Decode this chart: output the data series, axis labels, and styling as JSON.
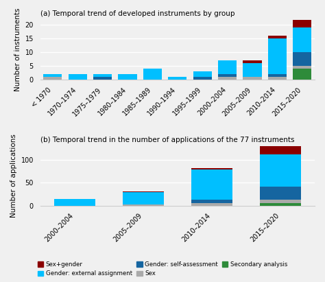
{
  "title_a": "(a) Temporal trend of developed instruments by group",
  "title_b": "(b) Temporal trend in the number of applications of the 77 instruments",
  "ylabel_a": "Number of instruments",
  "ylabel_b": "Number of applications",
  "colors": {
    "sex_gender": "#8B0000",
    "ext_assignment": "#00BFFF",
    "self_assessment": "#1565A0",
    "sex": "#AAAAAA",
    "secondary": "#2E8B3A"
  },
  "legend_labels": [
    "Sex+gender",
    "Gender: external assignment",
    "Gender: self-assessment",
    "Sex",
    "Secondary analysis"
  ],
  "categories_a": [
    "< 1970",
    "1970–1974",
    "1975–1979",
    "1980–1984",
    "1985–1989",
    "1990–1994",
    "1995–1999",
    "2000–2004",
    "2005–2009",
    "2010–2014",
    "2015–2020"
  ],
  "data_a": {
    "sex_gender": [
      0,
      0,
      0,
      0,
      0,
      0,
      0,
      0,
      1,
      1,
      3
    ],
    "ext_assignment": [
      1,
      2,
      1,
      2,
      4,
      1,
      2,
      5,
      5,
      13,
      9
    ],
    "self_assessment": [
      0,
      0,
      1,
      0,
      0,
      0,
      1,
      1,
      0,
      1,
      5
    ],
    "sex": [
      1,
      0,
      0,
      0,
      0,
      0,
      0,
      1,
      1,
      1,
      1
    ],
    "secondary": [
      0,
      0,
      0,
      0,
      0,
      0,
      0,
      0,
      0,
      0,
      4
    ]
  },
  "categories_b": [
    "2000–2004",
    "2005–2009",
    "2010–2014",
    "2015–2020"
  ],
  "data_b": {
    "sex_gender": [
      0,
      1,
      3,
      18
    ],
    "ext_assignment": [
      14,
      28,
      65,
      70
    ],
    "self_assessment": [
      0,
      0,
      8,
      28
    ],
    "sex": [
      0,
      2,
      5,
      8
    ],
    "secondary": [
      0,
      0,
      0,
      5
    ]
  },
  "ylim_a": [
    0,
    22
  ],
  "ylim_b": [
    0,
    130
  ],
  "yticks_a": [
    0,
    5,
    10,
    15,
    20
  ],
  "yticks_b": [
    0,
    50,
    100
  ],
  "background_color": "#f0f0f0",
  "grid_color": "#ffffff",
  "stack_order": [
    "secondary",
    "sex",
    "self_assessment",
    "ext_assignment",
    "sex_gender"
  ]
}
